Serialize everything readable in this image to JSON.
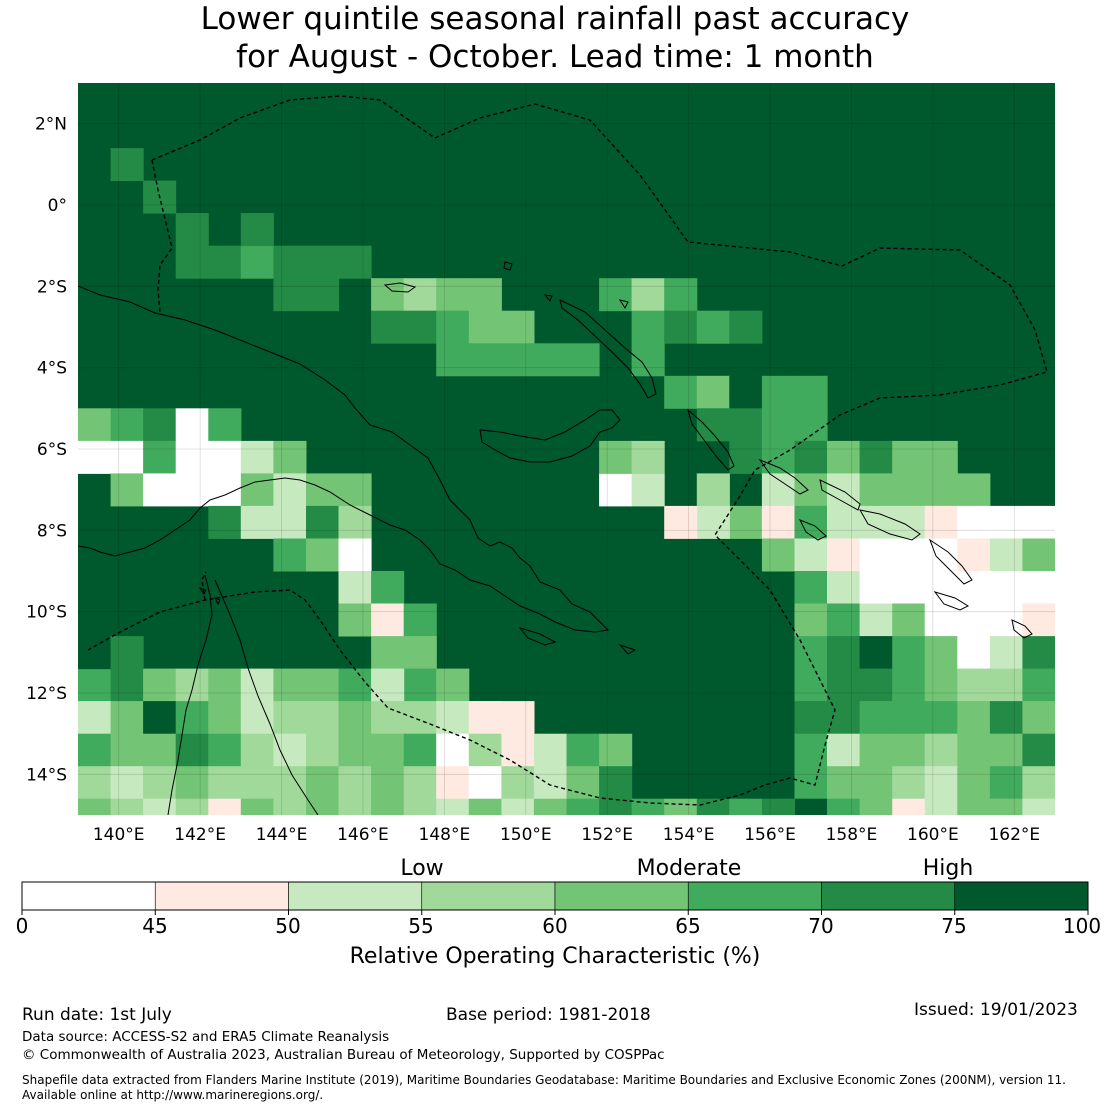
{
  "title_line1": "Lower quintile seasonal rainfall past accuracy",
  "title_line2": "for August - October. Lead time: 1 month",
  "map": {
    "lon_range": [
      139,
      163
    ],
    "lat_range": [
      -15,
      3
    ],
    "lon_ticks": [
      "140°E",
      "142°E",
      "144°E",
      "146°E",
      "148°E",
      "150°E",
      "152°E",
      "154°E",
      "156°E",
      "158°E",
      "160°E",
      "162°E"
    ],
    "lat_ticks": [
      "2°N",
      "0°",
      "2°S",
      "4°S",
      "6°S",
      "8°S",
      "10°S",
      "12°S",
      "14°S"
    ],
    "background_color": "#00582d"
  },
  "colorbar": {
    "levels": [
      {
        "label": "Low",
        "at": 55
      },
      {
        "label": "Moderate",
        "at": 65
      },
      {
        "label": "High",
        "at": 75
      }
    ],
    "bins": [
      {
        "from": 0,
        "to": 45,
        "color": "#ffffff"
      },
      {
        "from": 45,
        "to": 50,
        "color": "#feeae0"
      },
      {
        "from": 50,
        "to": 55,
        "color": "#c7e9c0"
      },
      {
        "from": 55,
        "to": 60,
        "color": "#a1d99b"
      },
      {
        "from": 60,
        "to": 65,
        "color": "#74c476"
      },
      {
        "from": 65,
        "to": 70,
        "color": "#41ab5d"
      },
      {
        "from": 70,
        "to": 75,
        "color": "#238b45"
      },
      {
        "from": 75,
        "to": 100,
        "color": "#00582d"
      }
    ],
    "ticks": [
      "0",
      "45",
      "50",
      "55",
      "60",
      "65",
      "70",
      "75",
      "100"
    ],
    "label": "Relative Operating Characteristic (%)"
  },
  "footer": {
    "run_date": "Run date: 1st July",
    "base_period": "Base period: 1981-2018",
    "issued": "Issued: 19/01/2023",
    "data_source": "Data source: ACCESS-S2 and ERA5 Climate Reanalysis",
    "copyright": "© Commonwealth of Australia 2023, Australian Bureau of Meteorology, Supported by COSPPac",
    "shapefile_line1": "Shapefile data extracted from Flanders Marine Institute (2019), Maritime Boundaries Geodatabase: Maritime Boundaries and Exclusive Economic Zones (200NM), version 11.",
    "shapefile_line2": "Available online at http://www.marineregions.org/."
  }
}
